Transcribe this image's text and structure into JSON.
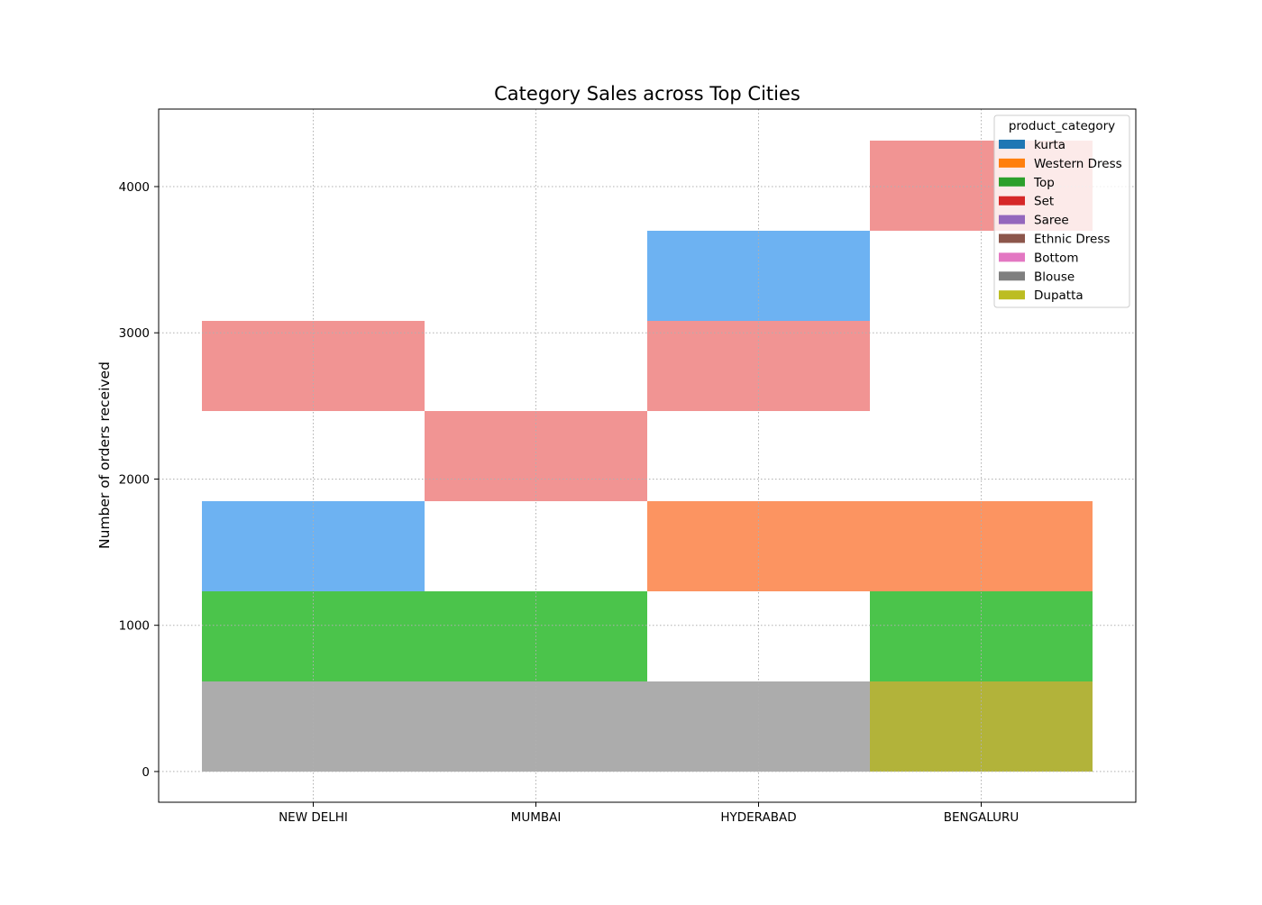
{
  "chart_data": {
    "type": "heatmap",
    "title": "Category Sales across Top Cities",
    "xlabel": "",
    "ylabel": "Number of orders received",
    "categories": [
      "NEW DELHI",
      "MUMBAI",
      "HYDERABAD",
      "BENGALURU"
    ],
    "ylim": [
      -210,
      4530
    ],
    "yticks": [
      0,
      1000,
      2000,
      3000,
      4000
    ],
    "bin_height": 616.5,
    "grid": true,
    "legend": {
      "title": "product_category",
      "placement": "top-right",
      "entries": [
        {
          "label": "kurta",
          "color": "#1f77b4"
        },
        {
          "label": "Western Dress",
          "color": "#ff7f0e"
        },
        {
          "label": "Top",
          "color": "#2ca02c"
        },
        {
          "label": "Set",
          "color": "#d62728"
        },
        {
          "label": "Saree",
          "color": "#9467bd"
        },
        {
          "label": "Ethnic Dress",
          "color": "#8c564b"
        },
        {
          "label": "Bottom",
          "color": "#e377c2"
        },
        {
          "label": "Blouse",
          "color": "#7f7f7f"
        },
        {
          "label": "Dupatta",
          "color": "#bcbd22"
        }
      ]
    },
    "cells": [
      {
        "city": "NEW DELHI",
        "y0": 0,
        "y1": 616.5,
        "color": "#acacac"
      },
      {
        "city": "NEW DELHI",
        "y0": 616.5,
        "y1": 1233,
        "color": "#4bc44b"
      },
      {
        "city": "NEW DELHI",
        "y0": 1233,
        "y1": 1849.5,
        "color": "#6db2f2"
      },
      {
        "city": "NEW DELHI",
        "y0": 2466,
        "y1": 3082.5,
        "color": "#f19493"
      },
      {
        "city": "MUMBAI",
        "y0": 0,
        "y1": 616.5,
        "color": "#acacac"
      },
      {
        "city": "MUMBAI",
        "y0": 616.5,
        "y1": 1233,
        "color": "#4bc44b"
      },
      {
        "city": "MUMBAI",
        "y0": 1849.5,
        "y1": 2466,
        "color": "#f19493"
      },
      {
        "city": "HYDERABAD",
        "y0": 0,
        "y1": 616.5,
        "color": "#acacac"
      },
      {
        "city": "HYDERABAD",
        "y0": 1233,
        "y1": 1849.5,
        "color": "#fc9461"
      },
      {
        "city": "HYDERABAD",
        "y0": 2466,
        "y1": 3082.5,
        "color": "#f19493"
      },
      {
        "city": "HYDERABAD",
        "y0": 3082.5,
        "y1": 3699,
        "color": "#6db2f2"
      },
      {
        "city": "BENGALURU",
        "y0": 0,
        "y1": 616.5,
        "color": "#b2b33a"
      },
      {
        "city": "BENGALURU",
        "y0": 616.5,
        "y1": 1233,
        "color": "#4bc44b"
      },
      {
        "city": "BENGALURU",
        "y0": 1233,
        "y1": 1849.5,
        "color": "#fc9461"
      },
      {
        "city": "BENGALURU",
        "y0": 3699,
        "y1": 4315.5,
        "color": "#f19493"
      }
    ]
  }
}
